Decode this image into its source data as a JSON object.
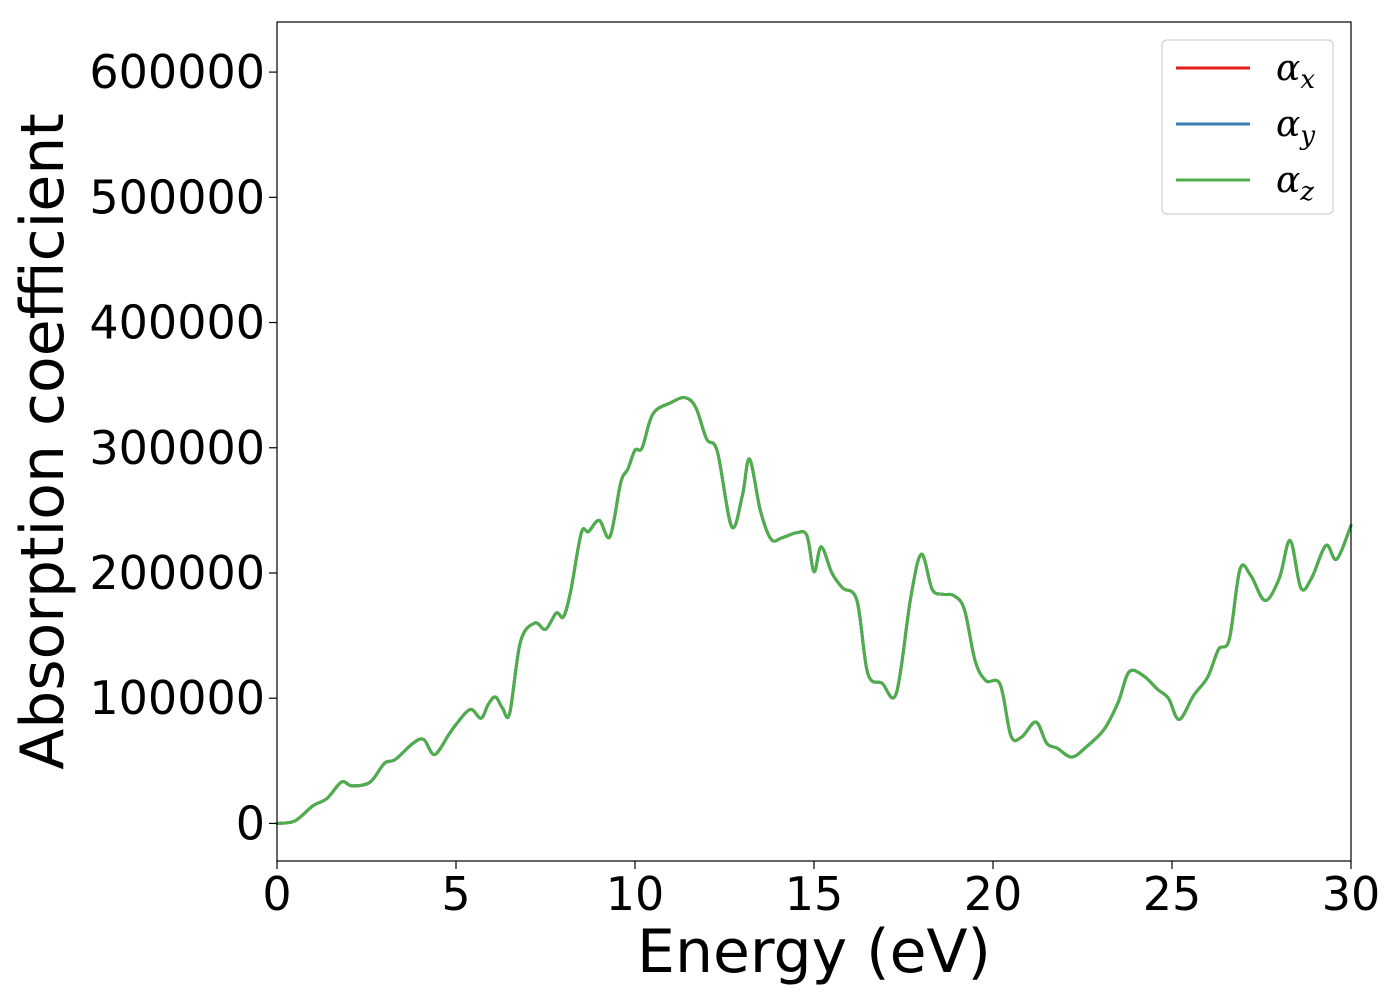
{
  "chart_data": {
    "type": "line",
    "title": "",
    "xlabel": "Energy (eV)",
    "ylabel": "Absorption coefficient",
    "xlim": [
      0,
      30
    ],
    "ylim": [
      -30000,
      640000
    ],
    "xticks": [
      0,
      5,
      10,
      15,
      20,
      25,
      30
    ],
    "xtick_labels": [
      "0",
      "5",
      "10",
      "15",
      "20",
      "25",
      "30"
    ],
    "yticks": [
      0,
      100000,
      200000,
      300000,
      400000,
      500000,
      600000
    ],
    "ytick_labels": [
      "0",
      "100000",
      "200000",
      "300000",
      "400000",
      "500000",
      "600000"
    ],
    "grid": false,
    "legend_position": "top-right",
    "x": [
      0,
      0.5,
      1,
      1.4,
      1.8,
      2.1,
      2.6,
      3,
      3.3,
      3.8,
      4.1,
      4.4,
      4.8,
      5,
      5.4,
      5.7,
      5.9,
      6.1,
      6.3,
      6.5,
      6.8,
      7.2,
      7.5,
      7.8,
      8,
      8.2,
      8.5,
      8.7,
      9,
      9.3,
      9.6,
      9.8,
      10,
      10.2,
      10.5,
      11,
      11.4,
      11.7,
      12,
      12.3,
      12.7,
      13,
      13.2,
      13.5,
      13.8,
      14.1,
      14.5,
      14.8,
      15,
      15.2,
      15.5,
      15.8,
      16.2,
      16.5,
      16.9,
      17.3,
      17.7,
      18,
      18.3,
      18.6,
      18.9,
      19.2,
      19.5,
      19.8,
      20.2,
      20.5,
      20.8,
      21.2,
      21.5,
      21.8,
      22.2,
      22.6,
      23.1,
      23.5,
      23.8,
      24.2,
      24.6,
      24.9,
      25.2,
      25.6,
      26,
      26.3,
      26.6,
      26.9,
      27.2,
      27.6,
      28,
      28.3,
      28.6,
      28.9,
      29.3,
      29.6,
      30
    ],
    "series": [
      {
        "name": "α",
        "subscript": "x",
        "color": "#e41a1c",
        "values": [
          0,
          2000,
          14000,
          20000,
          33000,
          30000,
          33000,
          48000,
          51000,
          64000,
          67000,
          55000,
          71000,
          79000,
          91000,
          84000,
          95000,
          101000,
          92000,
          88000,
          145000,
          160000,
          155000,
          168000,
          165000,
          185000,
          232000,
          233000,
          242000,
          229000,
          272000,
          283000,
          298000,
          300000,
          327000,
          336000,
          340000,
          332000,
          307000,
          297000,
          237000,
          262000,
          291000,
          250000,
          227000,
          228000,
          232000,
          230000,
          201000,
          221000,
          200000,
          188000,
          178000,
          120000,
          112000,
          104000,
          180000,
          215000,
          187000,
          183000,
          182000,
          171000,
          130000,
          114000,
          111000,
          70000,
          69000,
          81000,
          64000,
          60000,
          53000,
          61000,
          75000,
          97000,
          121000,
          118000,
          107000,
          100000,
          83000,
          102000,
          117000,
          139000,
          147000,
          203000,
          198000,
          178000,
          196000,
          226000,
          188000,
          196000,
          222000,
          211000,
          238000
        ]
      },
      {
        "name": "α",
        "subscript": "y",
        "color": "#377eb8",
        "values": [
          0,
          2000,
          14000,
          20000,
          33000,
          30000,
          33000,
          48000,
          51000,
          64000,
          67000,
          55000,
          71000,
          79000,
          91000,
          84000,
          95000,
          101000,
          92000,
          88000,
          145000,
          160000,
          155000,
          168000,
          165000,
          185000,
          232000,
          233000,
          242000,
          229000,
          272000,
          283000,
          298000,
          300000,
          327000,
          336000,
          340000,
          332000,
          307000,
          297000,
          237000,
          262000,
          291000,
          250000,
          227000,
          228000,
          232000,
          230000,
          201000,
          221000,
          200000,
          188000,
          178000,
          120000,
          112000,
          104000,
          180000,
          215000,
          187000,
          183000,
          182000,
          171000,
          130000,
          114000,
          111000,
          70000,
          69000,
          81000,
          64000,
          60000,
          53000,
          61000,
          75000,
          97000,
          121000,
          118000,
          107000,
          100000,
          83000,
          102000,
          117000,
          139000,
          147000,
          203000,
          198000,
          178000,
          196000,
          226000,
          188000,
          196000,
          222000,
          211000,
          238000
        ]
      },
      {
        "name": "α",
        "subscript": "z",
        "color": "#4daf4a",
        "values": [
          0,
          2000,
          14000,
          20000,
          33000,
          30000,
          33000,
          48000,
          51000,
          64000,
          67000,
          55000,
          71000,
          79000,
          91000,
          84000,
          95000,
          101000,
          92000,
          88000,
          145000,
          160000,
          155000,
          168000,
          165000,
          185000,
          232000,
          233000,
          242000,
          229000,
          272000,
          283000,
          298000,
          300000,
          327000,
          336000,
          340000,
          332000,
          307000,
          297000,
          237000,
          262000,
          291000,
          250000,
          227000,
          228000,
          232000,
          230000,
          201000,
          221000,
          200000,
          188000,
          178000,
          120000,
          112000,
          104000,
          180000,
          215000,
          187000,
          183000,
          182000,
          171000,
          130000,
          114000,
          111000,
          70000,
          69000,
          81000,
          64000,
          60000,
          53000,
          61000,
          75000,
          97000,
          121000,
          118000,
          107000,
          100000,
          83000,
          102000,
          117000,
          139000,
          147000,
          203000,
          198000,
          178000,
          196000,
          226000,
          188000,
          196000,
          222000,
          211000,
          238000
        ]
      }
    ]
  }
}
